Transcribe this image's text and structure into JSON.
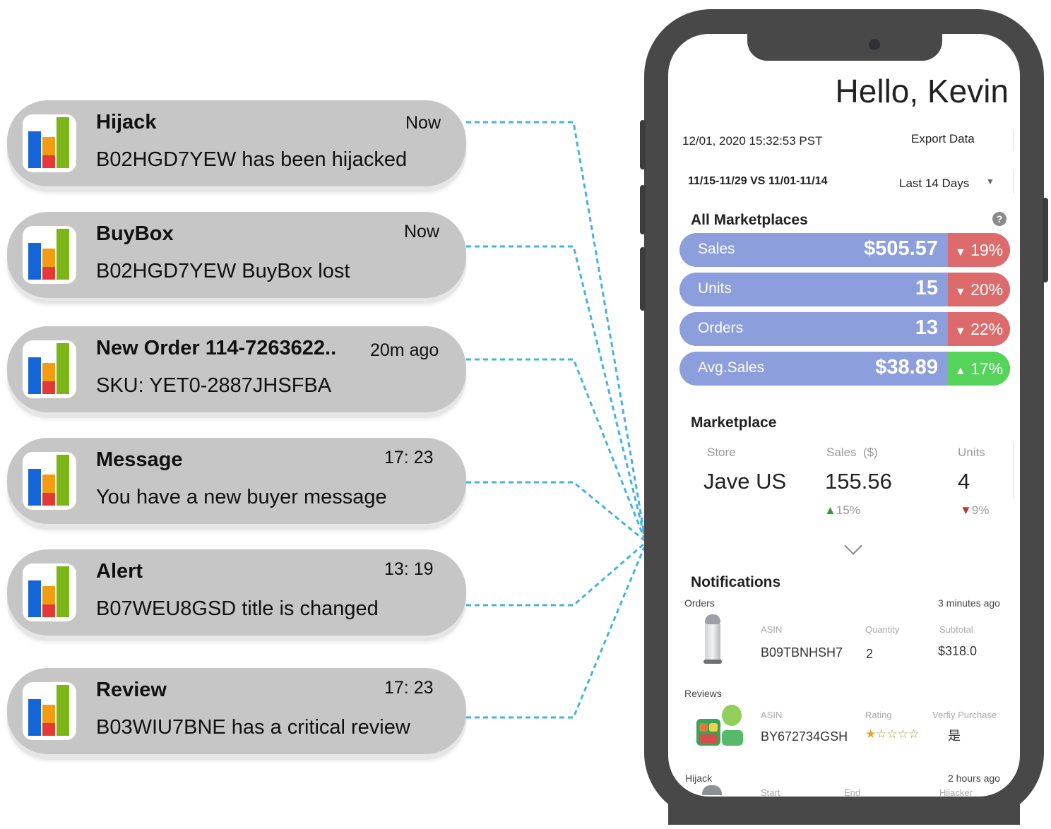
{
  "notifications": [
    {
      "title": "Hijack",
      "time": "Now",
      "body": "B02HGD7YEW has been hijacked"
    },
    {
      "title": "BuyBox",
      "time": "Now",
      "body": "B02HGD7YEW BuyBox lost"
    },
    {
      "title": "New Order 114-7263622..",
      "time": "20m ago",
      "body": "SKU: YET0-2887JHSFBA"
    },
    {
      "title": "Message",
      "time": "17: 23",
      "body": "You have a new buyer message"
    },
    {
      "title": "Alert",
      "time": "13:  19",
      "body": "B07WEU8GSD title is changed"
    },
    {
      "title": "Review",
      "time": "17: 23",
      "body": "B03WIU7BNE has a critical review"
    }
  ],
  "app_icon": {
    "name": "bar-chart-app-icon",
    "colors": {
      "blue": "#1565d8",
      "orange": "#f39c12",
      "red": "#e53935",
      "green": "#7cb518"
    }
  },
  "phone": {
    "greeting": "Hello, Kevin",
    "datetime": "12/01, 2020  15:32:53 PST",
    "export_label": "Export Data",
    "compare_range": "11/15-11/29 VS  11/01-11/14",
    "period_select": "Last 14 Days",
    "all_marketplaces": {
      "title": "All Marketplaces",
      "metrics": [
        {
          "label": "Sales",
          "value": "$505.57",
          "change": "19%",
          "direction": "down"
        },
        {
          "label": "Units",
          "value": "15",
          "change": "20%",
          "direction": "down"
        },
        {
          "label": "Orders",
          "value": "13",
          "change": "22%",
          "direction": "down"
        },
        {
          "label": "Avg.Sales",
          "value": "$38.89",
          "change": "17%",
          "direction": "up"
        }
      ]
    },
    "marketplace": {
      "title": "Marketplace",
      "col_store": "Store",
      "col_sales": "Sales  ($)",
      "col_units": "Units",
      "store": "Jave US",
      "sales": "155.56",
      "sales_change": "15%",
      "units": "4",
      "units_change": "9%"
    },
    "notifications": {
      "title": "Notifications",
      "orders": {
        "label": "Orders",
        "time": "3 minutes ago",
        "asin_label": "ASIN",
        "qty_label": "Quantity",
        "subtotal_label": "Subtotal",
        "asin": "B09TBNHSH7",
        "qty": "2",
        "subtotal": "$318.0"
      },
      "reviews": {
        "label": "Reviews",
        "asin_label": "ASIN",
        "rating_label": "Rating",
        "verify_label": "Verfiy Purchase",
        "asin": "BY672734GSH",
        "rating": 1,
        "rating_max": 5,
        "verify": "是"
      },
      "hijack": {
        "label": "Hijack",
        "time": "2 hours ago",
        "start_label": "Start",
        "end_label": "End",
        "hijacker_label": "Hijacker"
      }
    },
    "colors": {
      "metric_bar": "#8c9edc",
      "down": "#de6b6b",
      "up": "#55d35a",
      "frame": "#484848"
    }
  }
}
